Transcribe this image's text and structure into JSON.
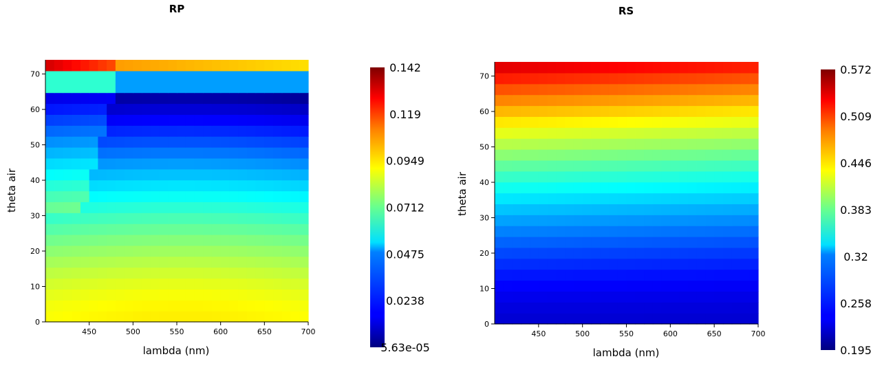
{
  "chart_data": [
    {
      "type": "heatmap",
      "title": "RP",
      "xlabel": "lambda (nm)",
      "ylabel": "theta air",
      "xlim": [
        400,
        700
      ],
      "ylim": [
        0,
        74
      ],
      "xticks": [
        450,
        500,
        550,
        600,
        650,
        700
      ],
      "yticks": [
        0,
        10,
        20,
        30,
        40,
        50,
        60,
        70
      ],
      "colorscale": "jet",
      "colorbar": {
        "min": 5.63e-05,
        "max": 0.142,
        "ticks": [
          "0.142",
          "0.119",
          "0.0949",
          "0.0712",
          "0.0475",
          "0.0238",
          "5.63e-05"
        ]
      }
    },
    {
      "type": "heatmap",
      "title": "RS",
      "xlabel": "lambda (nm)",
      "ylabel": "theta air",
      "xlim": [
        400,
        700
      ],
      "ylim": [
        0,
        74
      ],
      "xticks": [
        450,
        500,
        550,
        600,
        650,
        700
      ],
      "yticks": [
        0,
        10,
        20,
        30,
        40,
        50,
        60,
        70
      ],
      "colorscale": "jet",
      "colorbar": {
        "min": 0.195,
        "max": 0.572,
        "ticks": [
          "0.572",
          "0.509",
          "0.446",
          "0.383",
          "0.32",
          "0.258",
          "0.195"
        ]
      }
    }
  ]
}
